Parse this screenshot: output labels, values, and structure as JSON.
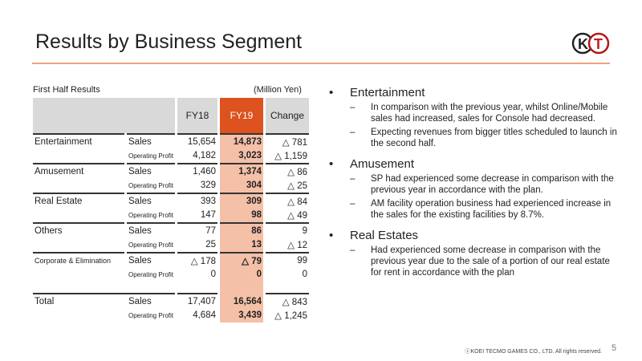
{
  "title": "Results by Business Segment",
  "table": {
    "caption": "First Half Results",
    "unit": "(Million Yen)",
    "headers": [
      "FY18",
      "FY19",
      "Change"
    ],
    "segments": [
      {
        "name": "Entertainment",
        "rows": [
          {
            "label": "Sales",
            "fy18": "15,654",
            "fy19": "14,873",
            "change": "△ 781"
          },
          {
            "label": "Operating Profit",
            "fy18": "4,182",
            "fy19": "3,023",
            "change": "△ 1,159"
          }
        ]
      },
      {
        "name": "Amusement",
        "rows": [
          {
            "label": "Sales",
            "fy18": "1,460",
            "fy19": "1,374",
            "change": "△ 86"
          },
          {
            "label": "Operating Profit",
            "fy18": "329",
            "fy19": "304",
            "change": "△ 25"
          }
        ]
      },
      {
        "name": "Real Estate",
        "rows": [
          {
            "label": "Sales",
            "fy18": "393",
            "fy19": "309",
            "change": "△ 84"
          },
          {
            "label": "Operating Profit",
            "fy18": "147",
            "fy19": "98",
            "change": "△ 49"
          }
        ]
      },
      {
        "name": "Others",
        "rows": [
          {
            "label": "Sales",
            "fy18": "77",
            "fy19": "86",
            "change": "9"
          },
          {
            "label": "Operating Profit",
            "fy18": "25",
            "fy19": "13",
            "change": "△ 12"
          }
        ]
      },
      {
        "name": "Corporate & Elimination",
        "rows": [
          {
            "label": "Sales",
            "fy18": "△ 178",
            "fy19": "△ 79",
            "change": "99"
          },
          {
            "label": "Operating Profit",
            "fy18": "0",
            "fy19": "0",
            "change": "0"
          }
        ]
      },
      {
        "name": "Total",
        "rows": [
          {
            "label": "Sales",
            "fy18": "17,407",
            "fy19": "16,564",
            "change": "△ 843"
          },
          {
            "label": "Operating Profit",
            "fy18": "4,684",
            "fy19": "3,439",
            "change": "△ 1,245"
          }
        ]
      }
    ]
  },
  "sections": [
    {
      "heading": "Entertainment",
      "items": [
        "In comparison with the previous year, whilst Online/Mobile sales had increased, sales for Console had decreased.",
        "Expecting revenues from bigger titles scheduled to launch in the second half."
      ]
    },
    {
      "heading": "Amusement",
      "items": [
        "SP had experienced some decrease in comparison with the previous year in accordance with the plan.",
        "AM facility operation business had experienced increase in the sales for the existing facilities by 8.7%."
      ]
    },
    {
      "heading": "Real Estates",
      "items": [
        "Had experienced some decrease in comparison with the previous year due to the sale of a portion of our real estate for rent in accordance with the plan"
      ]
    }
  ],
  "logo_text": "KT",
  "footer": "ⓒKOEI TECMO GAMES CO., LTD.  All rights reserved.",
  "page_number": "5"
}
